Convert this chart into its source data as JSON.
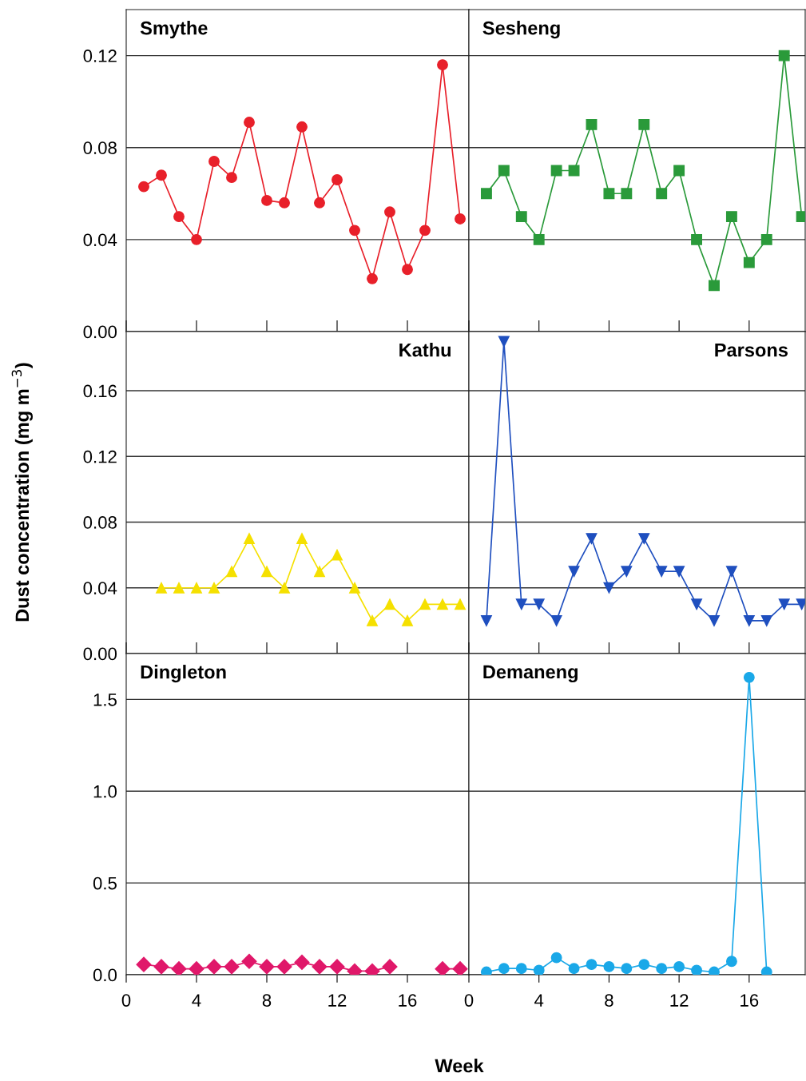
{
  "chart_data": [
    {
      "type": "line",
      "title": "Smythe",
      "ylabel": "Dust concentration (mg m$^{−3}$)",
      "x": [
        1,
        2,
        3,
        4,
        5,
        6,
        7,
        8,
        9,
        10,
        11,
        12,
        13,
        14,
        15,
        16,
        17,
        18,
        19
      ],
      "series": [
        {
          "color": "#e8202a",
          "values": [
            0.063,
            0.068,
            0.05,
            0.04,
            0.074,
            0.067,
            0.091,
            0.057,
            0.056,
            0.089,
            0.056,
            0.066,
            0.044,
            0.023,
            0.052,
            0.027,
            0.044,
            0.116,
            0.049
          ]
        }
      ],
      "marker": "circle",
      "xlim": [
        0,
        19.5
      ],
      "xticks": [
        {
          "value": 0,
          "label": null
        },
        {
          "value": 4,
          "label": null
        },
        {
          "value": 8,
          "label": null
        },
        {
          "value": 12,
          "label": null
        },
        {
          "value": 16,
          "label": null
        }
      ],
      "ylim": [
        0,
        0.14
      ],
      "yticks": [
        {
          "value": 0,
          "label": "0.00"
        },
        {
          "value": 0.04,
          "label": "0.04"
        },
        {
          "value": 0.08,
          "label": "0.08"
        },
        {
          "value": 0.12,
          "label": "0.12"
        }
      ],
      "grid": "y",
      "tick_labels": "y"
    },
    {
      "type": "line",
      "title": "Sesheng",
      "x": [
        1,
        2,
        3,
        4,
        5,
        6,
        7,
        8,
        9,
        10,
        11,
        12,
        13,
        14,
        15,
        16,
        17,
        18,
        19
      ],
      "series": [
        {
          "color": "#2a9a3a",
          "values": [
            0.06,
            0.07,
            0.05,
            0.04,
            0.07,
            0.07,
            0.09,
            0.06,
            0.06,
            0.09,
            0.06,
            0.07,
            0.04,
            0.02,
            0.05,
            0.03,
            0.04,
            0.12,
            0.05
          ]
        }
      ],
      "marker": "square",
      "xlim": [
        0,
        19.2
      ],
      "xticks": [
        {
          "value": 0,
          "label": null
        },
        {
          "value": 4,
          "label": null
        },
        {
          "value": 8,
          "label": null
        },
        {
          "value": 12,
          "label": null
        },
        {
          "value": 16,
          "label": null
        }
      ],
      "ylim": [
        0,
        0.14
      ],
      "yticks": [
        {
          "value": 0,
          "label": null
        },
        {
          "value": 0.04,
          "label": null
        },
        {
          "value": 0.08,
          "label": null
        },
        {
          "value": 0.12,
          "label": null
        }
      ],
      "grid": "y",
      "tick_labels": false
    },
    {
      "type": "line",
      "title": "Kathu",
      "x": [
        2,
        3,
        4,
        5,
        6,
        7,
        8,
        9,
        10,
        11,
        12,
        13,
        14,
        15,
        16,
        17,
        18,
        19
      ],
      "series": [
        {
          "color": "#f5e000",
          "values": [
            0.04,
            0.04,
            0.04,
            0.04,
            0.05,
            0.07,
            0.05,
            0.04,
            0.07,
            0.05,
            0.06,
            0.04,
            0.02,
            0.03,
            0.02,
            0.03,
            0.03,
            0.03
          ]
        }
      ],
      "marker": "triangle",
      "xlim": [
        0,
        19.5
      ],
      "xticks": [
        {
          "value": 0,
          "label": null
        },
        {
          "value": 4,
          "label": null
        },
        {
          "value": 8,
          "label": null
        },
        {
          "value": 12,
          "label": null
        },
        {
          "value": 16,
          "label": null
        }
      ],
      "ylim": [
        0,
        0.196
      ],
      "yticks": [
        {
          "value": 0,
          "label": "0.00"
        },
        {
          "value": 0.04,
          "label": "0.04"
        },
        {
          "value": 0.08,
          "label": "0.08"
        },
        {
          "value": 0.12,
          "label": "0.12"
        },
        {
          "value": 0.16,
          "label": "0.16"
        }
      ],
      "grid": "y",
      "tick_labels": "y"
    },
    {
      "type": "line",
      "title": "Parsons",
      "x": [
        1,
        2,
        3,
        4,
        5,
        6,
        7,
        8,
        9,
        10,
        11,
        12,
        13,
        14,
        15,
        16,
        17,
        18,
        19
      ],
      "series": [
        {
          "color": "#1f4fbf",
          "values": [
            0.02,
            0.19,
            0.03,
            0.03,
            0.02,
            0.05,
            0.07,
            0.04,
            0.05,
            0.07,
            0.05,
            0.05,
            0.03,
            0.02,
            0.05,
            0.02,
            0.02,
            0.03,
            0.03
          ]
        }
      ],
      "marker": "triangle_down",
      "xlim": [
        0,
        19.2
      ],
      "xticks": [
        {
          "value": 0,
          "label": null
        },
        {
          "value": 4,
          "label": null
        },
        {
          "value": 8,
          "label": null
        },
        {
          "value": 12,
          "label": null
        },
        {
          "value": 16,
          "label": null
        }
      ],
      "ylim": [
        0,
        0.196
      ],
      "yticks": [
        {
          "value": 0,
          "label": null
        },
        {
          "value": 0.04,
          "label": null
        },
        {
          "value": 0.08,
          "label": null
        },
        {
          "value": 0.12,
          "label": null
        },
        {
          "value": 0.16,
          "label": null
        }
      ],
      "grid": "y",
      "tick_labels": false
    },
    {
      "type": "line",
      "title": "Dingleton",
      "xlabel": "Week",
      "x": [
        1,
        2,
        3,
        4,
        5,
        6,
        7,
        8,
        9,
        10,
        11,
        12,
        13,
        14,
        15,
        16,
        17,
        18,
        19
      ],
      "series": [
        {
          "color": "#e0186a",
          "values": [
            0.056,
            0.044,
            0.032,
            0.032,
            0.044,
            0.044,
            0.073,
            0.044,
            0.044,
            0.068,
            0.044,
            0.044,
            0.02,
            0.02,
            0.044,
            null,
            null,
            0.032,
            0.032
          ]
        }
      ],
      "marker": "diamond",
      "xlim": [
        0,
        19.5
      ],
      "xticks": [
        0,
        4,
        8,
        12,
        16
      ],
      "ylim": [
        0,
        1.75
      ],
      "yticks": [
        {
          "value": 0,
          "label": "0.0"
        },
        {
          "value": 0.5,
          "label": "0.5"
        },
        {
          "value": 1,
          "label": "1.0"
        },
        {
          "value": 1.5,
          "label": "1.5"
        }
      ],
      "grid": "y"
    },
    {
      "type": "line",
      "title": "Demaneng",
      "x": [
        1,
        2,
        3,
        4,
        5,
        6,
        7,
        8,
        9,
        10,
        11,
        12,
        13,
        14,
        15,
        16,
        17
      ],
      "series": [
        {
          "color": "#1aa8e8",
          "values": [
            0.015,
            0.034,
            0.034,
            0.024,
            0.093,
            0.034,
            0.056,
            0.044,
            0.034,
            0.056,
            0.034,
            0.044,
            0.024,
            0.015,
            0.073,
            1.62,
            0.015
          ]
        }
      ],
      "marker": "circle",
      "xlim": [
        0,
        19.2
      ],
      "xticks": [
        0,
        4,
        8,
        12,
        16
      ],
      "ylim": [
        0,
        1.75
      ],
      "yticks": [
        {
          "value": 0,
          "label": null
        },
        {
          "value": 0.5,
          "label": null
        },
        {
          "value": 1,
          "label": null
        },
        {
          "value": 1.5,
          "label": null
        }
      ],
      "grid": "y",
      "tick_labels": "x"
    }
  ]
}
